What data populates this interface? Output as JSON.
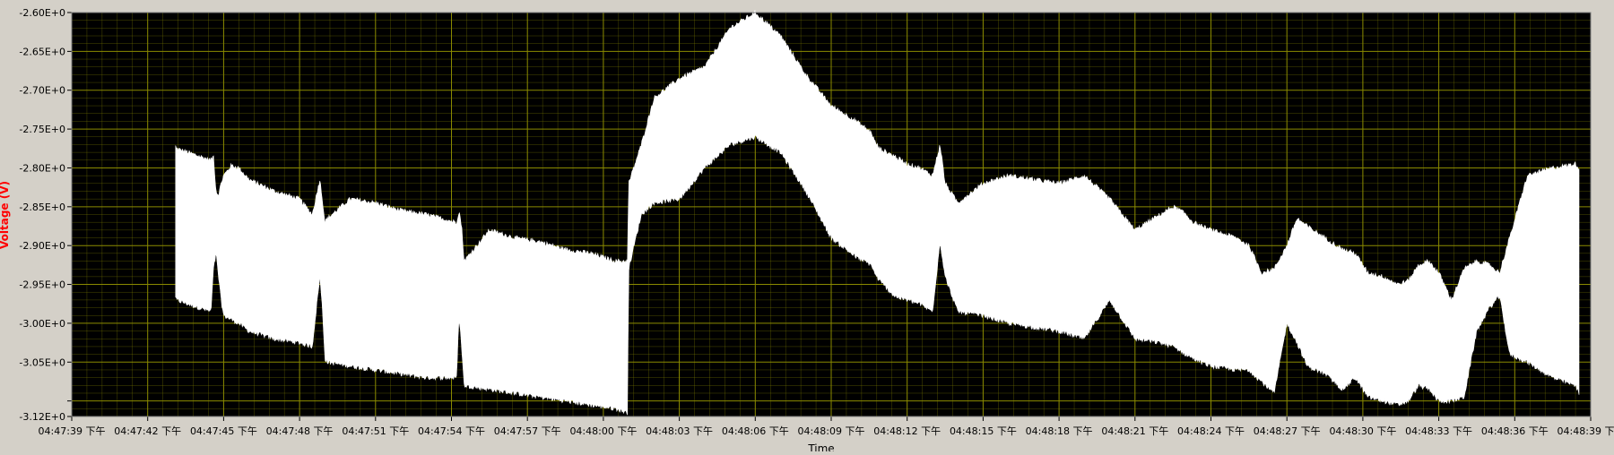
{
  "chart_data": {
    "type": "area",
    "title": "",
    "xlabel": "Time",
    "ylabel": "Voltage (V)",
    "ylim": [
      -3.12,
      -2.6
    ],
    "grid": true,
    "y_ticks": [
      "-2.60E+0",
      "-2.65E+0",
      "-2.70E+0",
      "-2.75E+0",
      "-2.80E+0",
      "-2.85E+0",
      "-2.90E+0",
      "-2.95E+0",
      "-3.00E+0",
      "-3.05E+0",
      "",
      "-3.12E+0"
    ],
    "y_tick_values": [
      -2.6,
      -2.65,
      -2.7,
      -2.75,
      -2.8,
      -2.85,
      -2.9,
      -2.95,
      -3.0,
      -3.05,
      -3.1,
      -3.12
    ],
    "x_ticks": [
      "04:47:39 下午",
      "04:47:42 下午",
      "04:47:45 下午",
      "04:47:48 下午",
      "04:47:51 下午",
      "04:47:54 下午",
      "04:47:57 下午",
      "04:48:00 下午",
      "04:48:03 下午",
      "04:48:06 下午",
      "04:48:09 下午",
      "04:48:12 下午",
      "04:48:15 下午",
      "04:48:18 下午",
      "04:48:21 下午",
      "04:48:24 下午",
      "04:48:27 下午",
      "04:48:30 下午",
      "04:48:33 下午",
      "04:48:36 下午",
      "04:48:39 下午"
    ],
    "x_range_seconds": [
      0,
      60
    ],
    "colors": {
      "plot_bg": "#000000",
      "grid": "#8a8a00",
      "signal": "#ffffff",
      "ylabel": "#ff0000",
      "frame": "#d4d0c8"
    },
    "series": [
      {
        "x": [
          4.1,
          4.12,
          5.5,
          5.6,
          5.7,
          5.8,
          5.9,
          6.0,
          6.3,
          6.6,
          7.0,
          8.0,
          9.0,
          9.5,
          9.8,
          9.9,
          10.0,
          10.1,
          11.0,
          12.0,
          13.0,
          14.0,
          15.2,
          15.3,
          15.4,
          15.5,
          16.5,
          17.5,
          18.5,
          19.5,
          20.5,
          21.5,
          21.95,
          22.0,
          22.5,
          23.0,
          24.0,
          25.0,
          26.0,
          27.0,
          28.0,
          29.0,
          30.0,
          31.0,
          31.6,
          31.7,
          31.9,
          32.2,
          32.5,
          33.0,
          33.5,
          34.0,
          34.3,
          34.5,
          35.0,
          36.0,
          37.0,
          38.0,
          39.0,
          40.0,
          41.0,
          42.0,
          43.0,
          43.5,
          43.8,
          44.0,
          44.3,
          44.6,
          45.0,
          46.0,
          46.5,
          47.0,
          47.5,
          48.0,
          48.4,
          48.8,
          49.5,
          50.2,
          50.7,
          51.2,
          51.8,
          52.4,
          52.8,
          53.2,
          53.6,
          54.0,
          54.5,
          55.0,
          55.5,
          56.0,
          56.4,
          56.8,
          57.5,
          58.5,
          59.4,
          59.55
        ],
        "upper": [
          -2.772,
          -2.775,
          -2.79,
          -2.785,
          -2.83,
          -2.835,
          -2.82,
          -2.81,
          -2.797,
          -2.8,
          -2.815,
          -2.83,
          -2.84,
          -2.86,
          -2.815,
          -2.84,
          -2.87,
          -2.865,
          -2.84,
          -2.845,
          -2.855,
          -2.86,
          -2.87,
          -2.855,
          -2.875,
          -2.92,
          -2.88,
          -2.89,
          -2.895,
          -2.905,
          -2.91,
          -2.92,
          -2.92,
          -2.82,
          -2.77,
          -2.71,
          -2.685,
          -2.67,
          -2.62,
          -2.6,
          -2.63,
          -2.68,
          -2.72,
          -2.74,
          -2.755,
          -2.765,
          -2.775,
          -2.78,
          -2.785,
          -2.795,
          -2.8,
          -2.81,
          -2.77,
          -2.82,
          -2.845,
          -2.82,
          -2.81,
          -2.815,
          -2.82,
          -2.81,
          -2.84,
          -2.88,
          -2.86,
          -2.85,
          -2.855,
          -2.86,
          -2.87,
          -2.875,
          -2.88,
          -2.89,
          -2.9,
          -2.935,
          -2.93,
          -2.9,
          -2.865,
          -2.875,
          -2.89,
          -2.905,
          -2.91,
          -2.935,
          -2.94,
          -2.95,
          -2.945,
          -2.925,
          -2.92,
          -2.935,
          -2.97,
          -2.93,
          -2.92,
          -2.925,
          -2.935,
          -2.89,
          -2.81,
          -2.8,
          -2.795,
          -2.8
        ],
        "lower": [
          -2.965,
          -2.97,
          -2.985,
          -2.93,
          -2.91,
          -2.94,
          -2.97,
          -2.99,
          -2.995,
          -3.0,
          -3.01,
          -3.02,
          -3.025,
          -3.03,
          -2.94,
          -2.98,
          -3.045,
          -3.05,
          -3.055,
          -3.06,
          -3.065,
          -3.07,
          -3.07,
          -2.99,
          -3.03,
          -3.08,
          -3.085,
          -3.09,
          -3.095,
          -3.1,
          -3.105,
          -3.11,
          -3.115,
          -2.93,
          -2.86,
          -2.845,
          -2.84,
          -2.8,
          -2.77,
          -2.76,
          -2.78,
          -2.83,
          -2.89,
          -2.915,
          -2.925,
          -2.935,
          -2.945,
          -2.955,
          -2.965,
          -2.97,
          -2.975,
          -2.985,
          -2.895,
          -2.94,
          -2.985,
          -2.99,
          -3.0,
          -3.005,
          -3.01,
          -3.02,
          -2.97,
          -3.02,
          -3.025,
          -3.03,
          -3.035,
          -3.04,
          -3.045,
          -3.05,
          -3.055,
          -3.06,
          -3.06,
          -3.075,
          -3.09,
          -3.0,
          -3.025,
          -3.055,
          -3.065,
          -3.085,
          -3.07,
          -3.095,
          -3.1,
          -3.105,
          -3.1,
          -3.08,
          -3.085,
          -3.1,
          -3.1,
          -3.095,
          -3.01,
          -2.98,
          -2.965,
          -3.04,
          -3.05,
          -3.07,
          -3.08,
          -3.09
        ]
      }
    ]
  }
}
